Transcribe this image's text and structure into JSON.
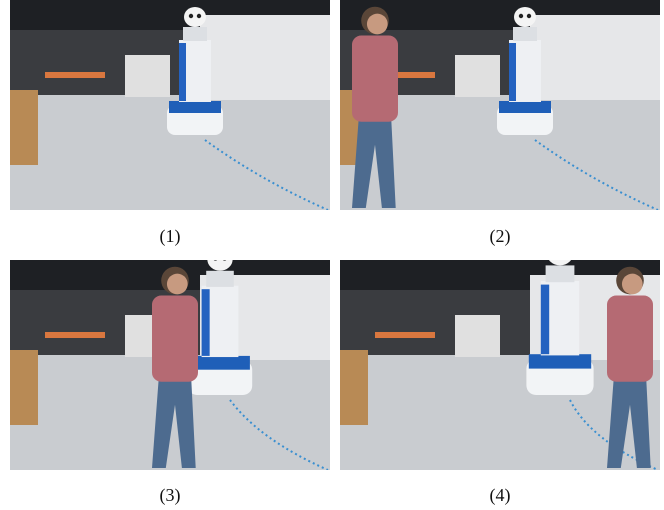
{
  "panels": [
    {
      "caption": "(1)"
    },
    {
      "caption": "(2)"
    },
    {
      "caption": "(3)"
    },
    {
      "caption": "(4)"
    }
  ]
}
